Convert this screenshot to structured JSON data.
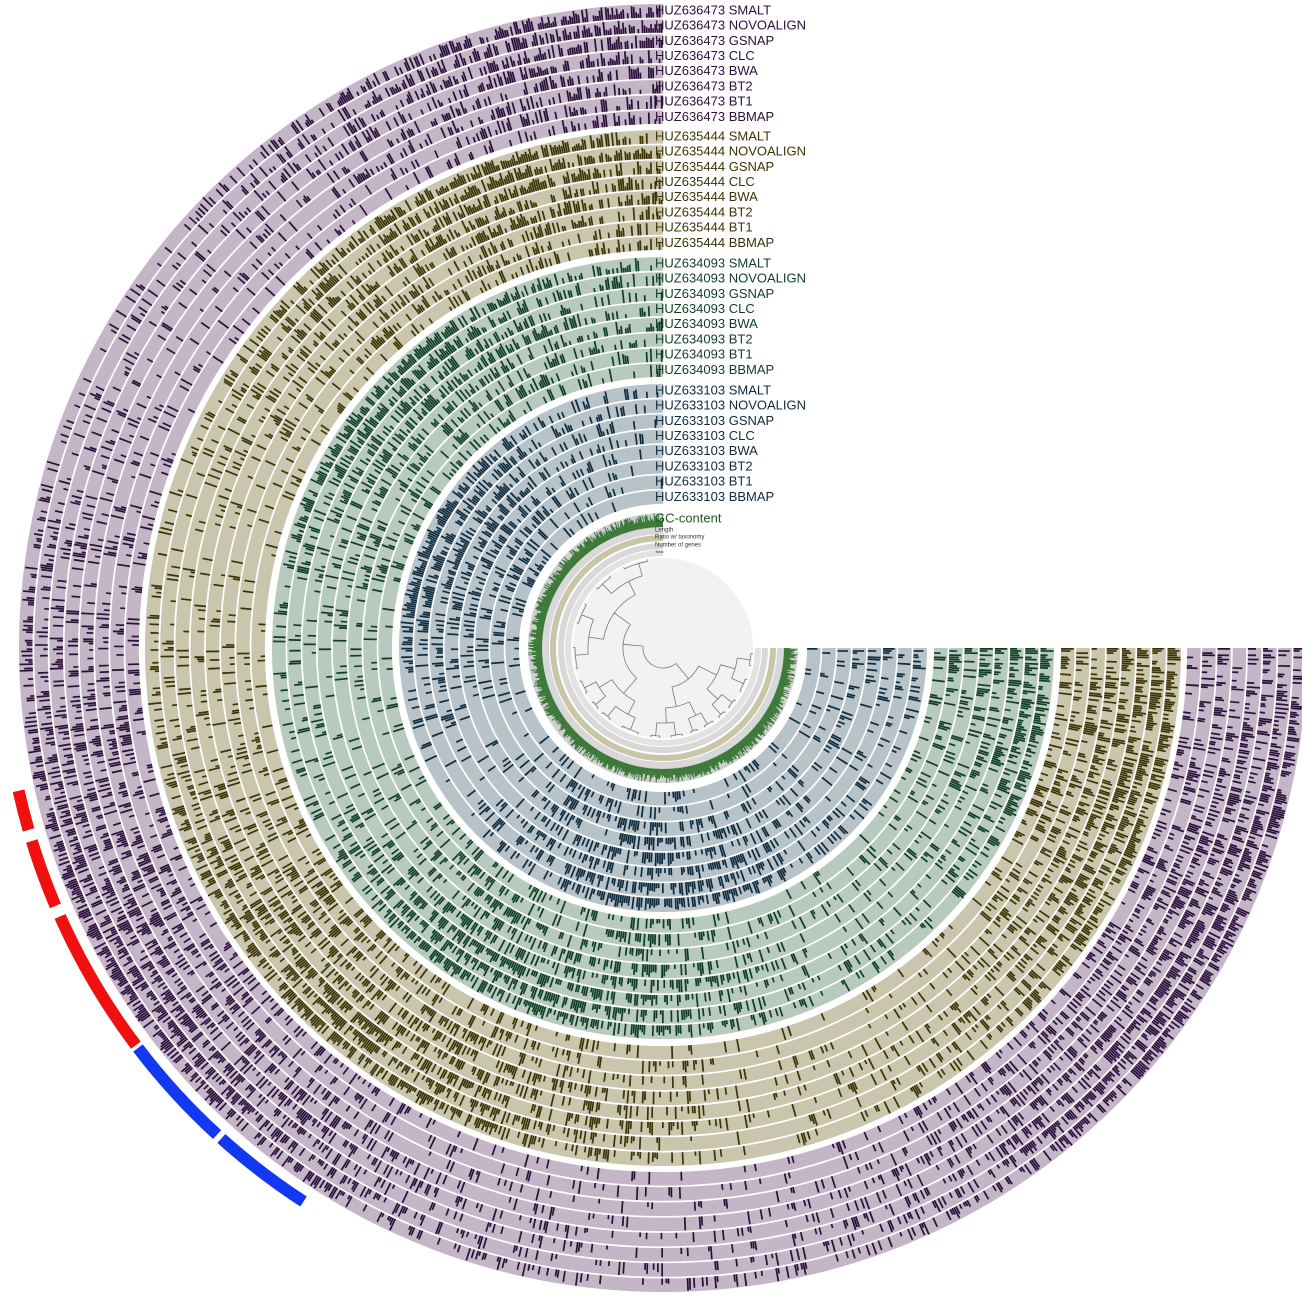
{
  "groups": [
    {
      "name": "HUZ636473",
      "layers": [
        "HUZ636473 SMALT",
        "HUZ636473 NOVOALIGN",
        "HUZ636473 GSNAP",
        "HUZ636473 CLC",
        "HUZ636473 BWA",
        "HUZ636473 BT2",
        "HUZ636473 BT1",
        "HUZ636473 BBMAP"
      ]
    },
    {
      "name": "HUZ635444",
      "layers": [
        "HUZ635444 SMALT",
        "HUZ635444 NOVOALIGN",
        "HUZ635444 GSNAP",
        "HUZ635444 CLC",
        "HUZ635444 BWA",
        "HUZ635444 BT2",
        "HUZ635444 BT1",
        "HUZ635444 BBMAP"
      ]
    },
    {
      "name": "HUZ634093",
      "layers": [
        "HUZ634093 SMALT",
        "HUZ634093 NOVOALIGN",
        "HUZ634093 GSNAP",
        "HUZ634093 CLC",
        "HUZ634093 BWA",
        "HUZ634093 BT2",
        "HUZ634093 BT1",
        "HUZ634093 BBMAP"
      ]
    },
    {
      "name": "HUZ633103",
      "layers": [
        "HUZ633103 SMALT",
        "HUZ633103 NOVOALIGN",
        "HUZ633103 GSNAP",
        "HUZ633103 CLC",
        "HUZ633103 BWA",
        "HUZ633103 BT2",
        "HUZ633103 BT1",
        "HUZ633103 BBMAP"
      ]
    }
  ],
  "extra_layers": [
    "GC-content",
    "Length",
    "Ratio w/ taxonomy",
    "Number of genes",
    "Total"
  ]
}
